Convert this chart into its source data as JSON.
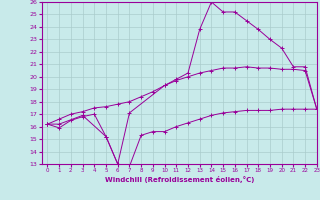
{
  "xlabel": "Windchill (Refroidissement éolien,°C)",
  "bg_color": "#c8eaea",
  "line_color": "#990099",
  "grid_color": "#aacccc",
  "ylim": [
    13,
    26
  ],
  "xlim": [
    -0.5,
    23
  ],
  "yticks": [
    13,
    14,
    15,
    16,
    17,
    18,
    19,
    20,
    21,
    22,
    23,
    24,
    25,
    26
  ],
  "xticks": [
    0,
    1,
    2,
    3,
    4,
    5,
    6,
    7,
    8,
    9,
    10,
    11,
    12,
    13,
    14,
    15,
    16,
    17,
    18,
    19,
    20,
    21,
    22,
    23
  ],
  "line1_x": [
    0,
    1,
    2,
    3,
    4,
    5,
    6,
    7,
    8,
    9,
    10,
    11,
    12,
    13,
    14,
    15,
    16,
    17,
    18,
    19,
    20,
    21,
    22,
    23
  ],
  "line1_y": [
    16.2,
    15.9,
    16.5,
    16.8,
    17.0,
    15.2,
    13.0,
    12.8,
    15.3,
    15.6,
    15.6,
    16.0,
    16.3,
    16.6,
    16.9,
    17.1,
    17.2,
    17.3,
    17.3,
    17.3,
    17.4,
    17.4,
    17.4,
    17.4
  ],
  "line2_x": [
    0,
    1,
    2,
    3,
    4,
    5,
    6,
    7,
    8,
    9,
    10,
    11,
    12,
    13,
    14,
    15,
    16,
    17,
    18,
    19,
    20,
    21,
    22,
    23
  ],
  "line2_y": [
    16.2,
    16.6,
    17.0,
    17.2,
    17.5,
    17.6,
    17.8,
    18.0,
    18.4,
    18.8,
    19.3,
    19.7,
    20.0,
    20.3,
    20.5,
    20.7,
    20.7,
    20.8,
    20.7,
    20.7,
    20.6,
    20.6,
    20.5,
    17.4
  ],
  "line3_x": [
    0,
    1,
    3,
    5,
    6,
    7,
    10,
    11,
    12,
    13,
    14,
    15,
    16,
    17,
    18,
    19,
    20,
    21,
    22,
    23
  ],
  "line3_y": [
    16.2,
    16.2,
    16.9,
    15.2,
    13.0,
    17.1,
    19.3,
    19.8,
    20.3,
    23.8,
    26.0,
    25.2,
    25.2,
    24.5,
    23.8,
    23.0,
    22.3,
    20.8,
    20.8,
    17.4
  ]
}
